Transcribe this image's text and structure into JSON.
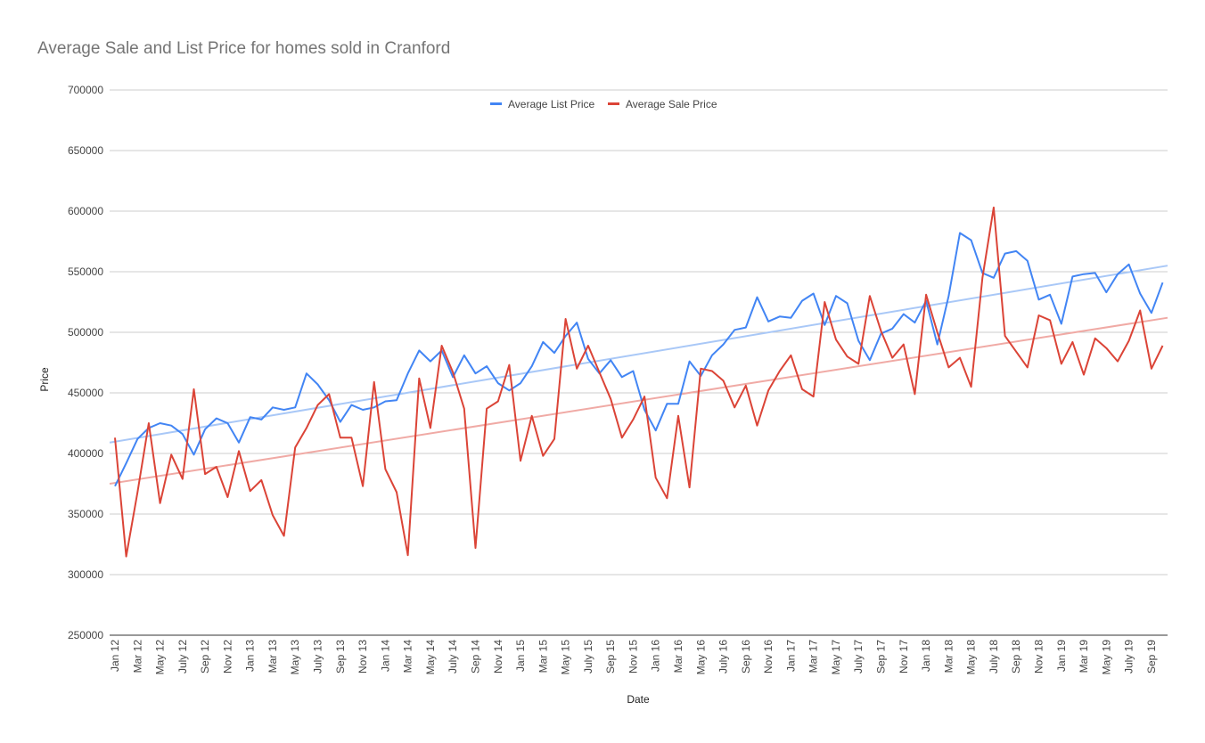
{
  "chart_data": {
    "type": "line",
    "title": "Average Sale and List Price for homes sold in Cranford",
    "xlabel": "Date",
    "ylabel": "Price",
    "ylim": [
      250000,
      700000
    ],
    "yticks": [
      250000,
      300000,
      350000,
      400000,
      450000,
      500000,
      550000,
      600000,
      650000,
      700000
    ],
    "grid": true,
    "legend_position": "top",
    "x": [
      "Jan 12",
      "Feb 12",
      "Mar 12",
      "Apr 12",
      "May 12",
      "Jun 12",
      "July 12",
      "Aug 12",
      "Sep 12",
      "Oct 12",
      "Nov 12",
      "Dec 12",
      "Jan 13",
      "Feb 13",
      "Mar 13",
      "Apr 13",
      "May 13",
      "Jun 13",
      "July 13",
      "Aug 13",
      "Sep 13",
      "Oct 13",
      "Nov 13",
      "Dec 13",
      "Jan 14",
      "Feb 14",
      "Mar 14",
      "Apr 14",
      "May 14",
      "Jun 14",
      "July 14",
      "Aug 14",
      "Sep 14",
      "Oct 14",
      "Nov 14",
      "Dec 14",
      "Jan 15",
      "Feb 15",
      "Mar 15",
      "Apr 15",
      "May 15",
      "Jun 15",
      "July 15",
      "Aug 15",
      "Sep 15",
      "Oct 15",
      "Nov 15",
      "Dec 15",
      "Jan 16",
      "Feb 16",
      "Mar 16",
      "Apr 16",
      "May 16",
      "Jun 16",
      "July 16",
      "Aug 16",
      "Sep 16",
      "Oct 16",
      "Nov 16",
      "Dec 16",
      "Jan 17",
      "Feb 17",
      "Mar 17",
      "Apr 17",
      "May 17",
      "Jun 17",
      "July 17",
      "Aug 17",
      "Sep 17",
      "Oct 17",
      "Nov 17",
      "Dec 17",
      "Jan 18",
      "Feb 18",
      "Mar 18",
      "Apr 18",
      "May 18",
      "Jun 18",
      "July 18",
      "Aug 18",
      "Sep 18",
      "Oct 18",
      "Nov 18",
      "Dec 18",
      "Jan 19",
      "Feb 19",
      "Mar 19",
      "Apr 19",
      "May 19",
      "Jun 19",
      "July 19",
      "Aug 19",
      "Sep 19",
      "Oct 19"
    ],
    "xtick_labels": [
      "Jan 12",
      "Mar 12",
      "May 12",
      "July 12",
      "Sep 12",
      "Nov 12",
      "Jan 13",
      "Mar 13",
      "May 13",
      "July 13",
      "Sep 13",
      "Nov 13",
      "Jan 14",
      "Mar 14",
      "May 14",
      "July 14",
      "Sep 14",
      "Nov 14",
      "Jan 15",
      "Mar 15",
      "May 15",
      "July 15",
      "Sep 15",
      "Nov 15",
      "Jan 16",
      "Mar 16",
      "May 16",
      "July 16",
      "Sep 16",
      "Nov 16",
      "Jan 17",
      "Mar 17",
      "May 17",
      "July 17",
      "Sep 17",
      "Nov 17",
      "Jan 18",
      "Mar 18",
      "May 18",
      "July 18",
      "Sep 18",
      "Nov 18",
      "Jan 19",
      "Mar 19",
      "May 19",
      "July 19",
      "Sep 19"
    ],
    "series": [
      {
        "name": "Average List Price",
        "color": "#4285f4",
        "trendline_color": "#a9c8f7",
        "trendline": [
          409000,
          555000
        ],
        "values": [
          373000,
          392000,
          412000,
          421000,
          425000,
          423000,
          416000,
          399000,
          420000,
          429000,
          425000,
          409000,
          430000,
          428000,
          438000,
          436000,
          438000,
          466000,
          457000,
          444000,
          426000,
          440000,
          436000,
          438000,
          443000,
          444000,
          466000,
          485000,
          476000,
          485000,
          463000,
          481000,
          466000,
          472000,
          458000,
          452000,
          458000,
          472000,
          492000,
          483000,
          497000,
          508000,
          478000,
          466000,
          477000,
          463000,
          468000,
          436000,
          419000,
          441000,
          441000,
          476000,
          464000,
          481000,
          490000,
          502000,
          504000,
          529000,
          509000,
          513000,
          512000,
          526000,
          532000,
          506000,
          530000,
          524000,
          493000,
          477000,
          499000,
          503000,
          515000,
          508000,
          526000,
          490000,
          530000,
          582000,
          576000,
          549000,
          545000,
          565000,
          567000,
          559000,
          527000,
          531000,
          507000,
          546000,
          548000,
          549000,
          533000,
          548000,
          556000,
          532000,
          516000,
          541000
        ]
      },
      {
        "name": "Average Sale Price",
        "color": "#db4437",
        "trendline_color": "#f0aaa5",
        "trendline": [
          375000,
          512000
        ],
        "values": [
          413000,
          315000,
          368000,
          425000,
          359000,
          399000,
          379000,
          453000,
          383000,
          389000,
          364000,
          402000,
          369000,
          378000,
          349000,
          332000,
          405000,
          421000,
          440000,
          449000,
          413000,
          413000,
          373000,
          459000,
          387000,
          368000,
          316000,
          462000,
          421000,
          489000,
          467000,
          437000,
          322000,
          437000,
          443000,
          473000,
          394000,
          431000,
          398000,
          412000,
          511000,
          470000,
          489000,
          467000,
          445000,
          413000,
          428000,
          447000,
          380000,
          363000,
          431000,
          372000,
          470000,
          468000,
          460000,
          438000,
          456000,
          423000,
          452000,
          468000,
          481000,
          453000,
          447000,
          525000,
          494000,
          480000,
          474000,
          530000,
          501000,
          479000,
          490000,
          449000,
          531000,
          500000,
          471000,
          479000,
          455000,
          545000,
          603000,
          497000,
          484000,
          471000,
          514000,
          510000,
          474000,
          492000,
          465000,
          495000,
          487000,
          476000,
          493000,
          518000,
          470000,
          489000
        ]
      }
    ]
  }
}
